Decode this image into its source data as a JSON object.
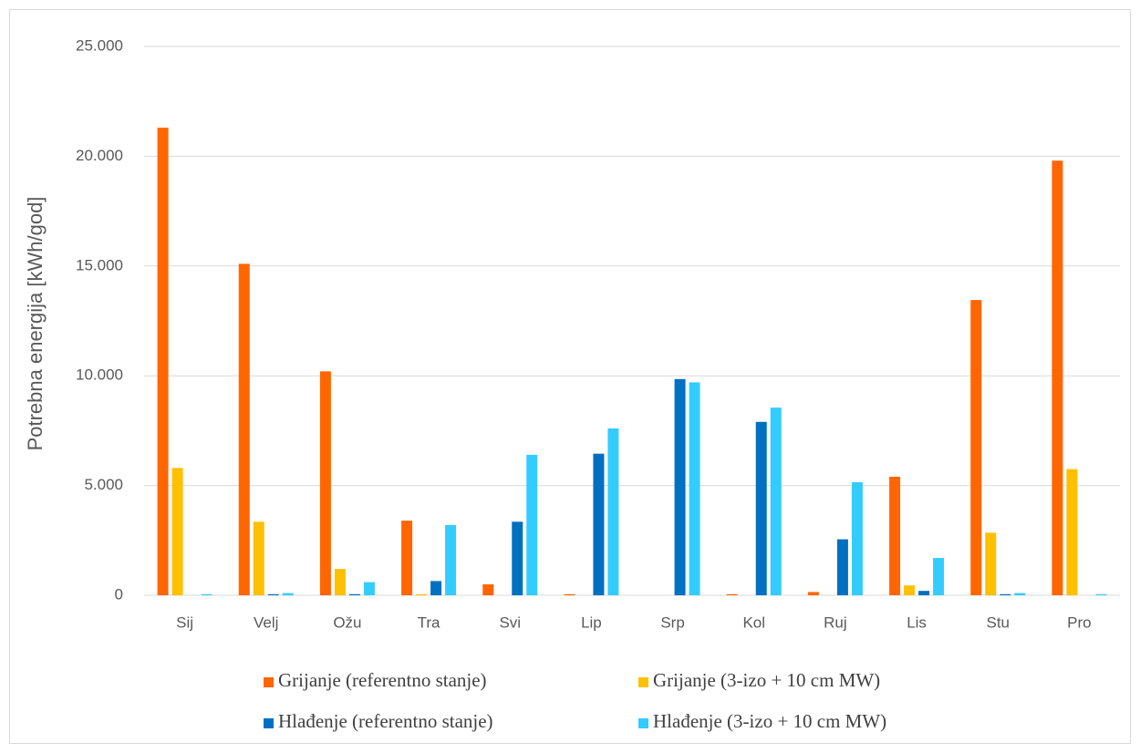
{
  "chart_data": {
    "type": "bar",
    "y_label": "Potrebna energija [kWh/god]",
    "categories": [
      "Sij",
      "Velj",
      "Ožu",
      "Tra",
      "Svi",
      "Lip",
      "Srp",
      "Kol",
      "Ruj",
      "Lis",
      "Stu",
      "Pro"
    ],
    "series": [
      {
        "name": "Grijanje (referentno stanje)",
        "color": "#ff6600",
        "values": [
          21300,
          15100,
          10200,
          3400,
          500,
          50,
          0,
          50,
          150,
          5400,
          13450,
          19800
        ]
      },
      {
        "name": "Grijanje (3-izo + 10 cm MW)",
        "color": "#ffc000",
        "values": [
          5800,
          3350,
          1200,
          50,
          0,
          0,
          0,
          0,
          0,
          450,
          2850,
          5750
        ]
      },
      {
        "name": "Hlađenje (referentno stanje)",
        "color": "#0070c0",
        "values": [
          0,
          50,
          50,
          650,
          3350,
          6450,
          9850,
          7900,
          2550,
          200,
          50,
          0
        ]
      },
      {
        "name": "Hlađenje (3-izo + 10 cm MW)",
        "color": "#33ccff",
        "values": [
          50,
          100,
          600,
          3200,
          6400,
          7600,
          9700,
          8550,
          5150,
          1700,
          100,
          50
        ]
      }
    ],
    "ylim": [
      0,
      25000
    ],
    "yticks": [
      0,
      {
        "value": 5000,
        "label": "5.000"
      },
      {
        "value": 10000,
        "label": "10.000"
      },
      {
        "value": 15000,
        "label": "15.000"
      },
      {
        "value": 20000,
        "label": "20.000"
      },
      {
        "value": 25000,
        "label": "25.000"
      }
    ],
    "grid": true,
    "legend": "bottom"
  }
}
